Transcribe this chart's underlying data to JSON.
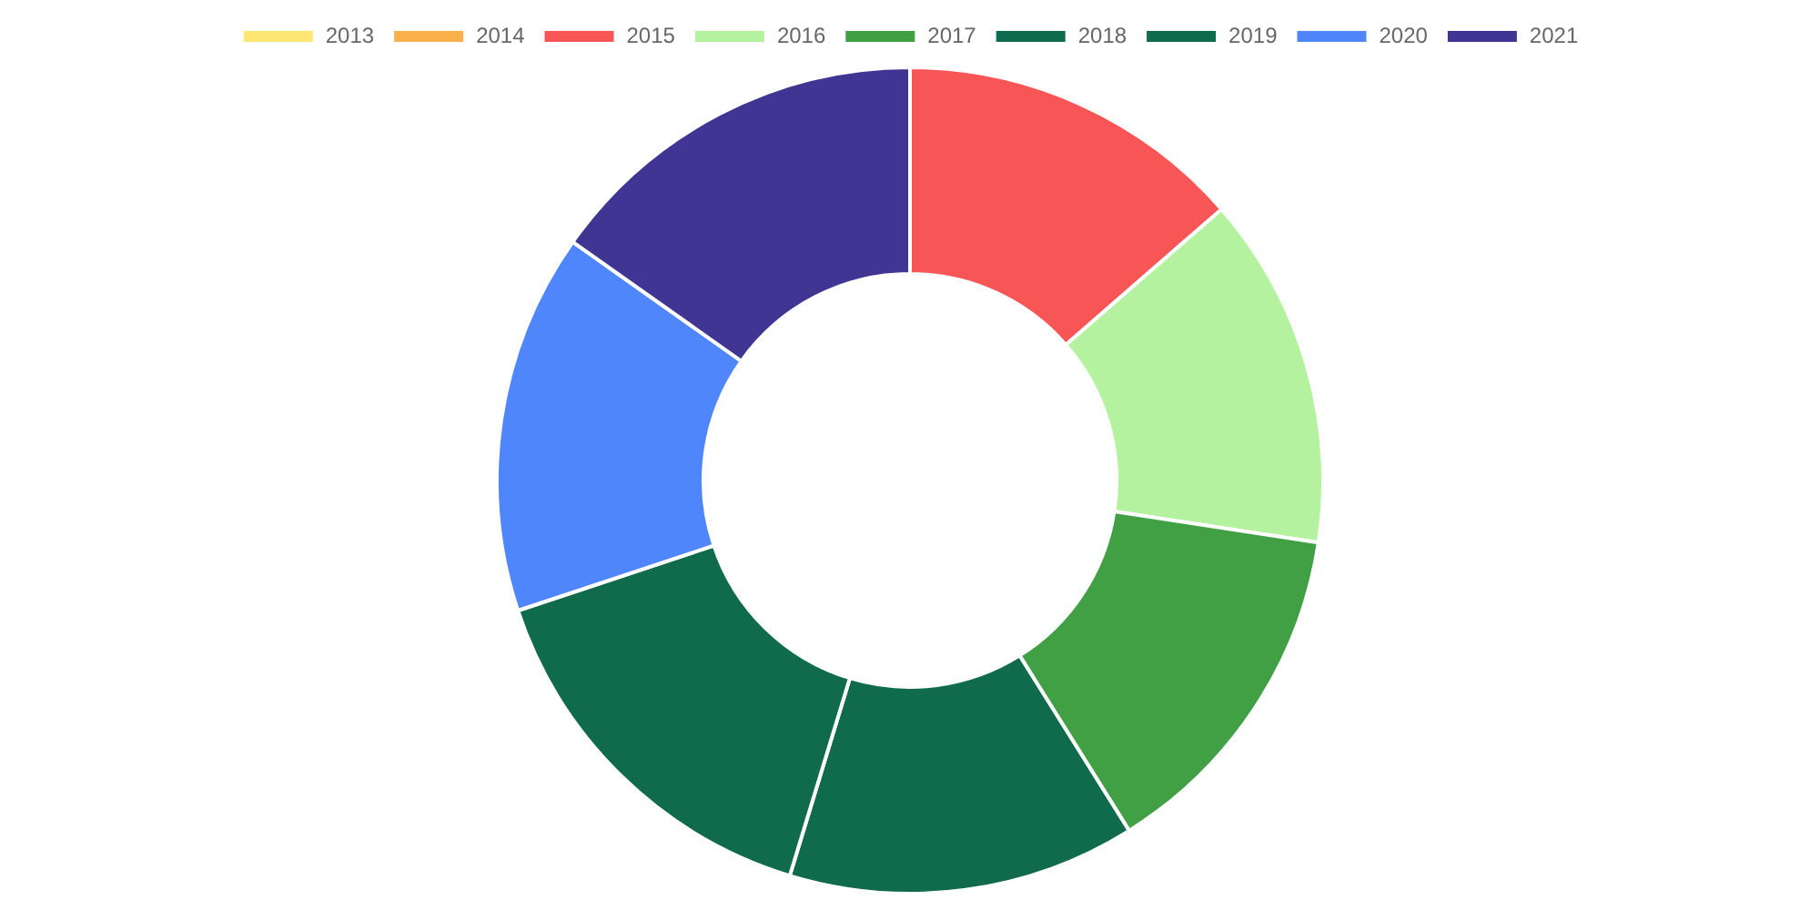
{
  "chart_data": {
    "type": "donut",
    "categories": [
      "2013",
      "2014",
      "2015",
      "2016",
      "2017",
      "2018",
      "2019",
      "2020",
      "2021"
    ],
    "values": [
      0,
      0,
      13.6,
      13.8,
      13.7,
      13.6,
      15.2,
      14.9,
      15.2
    ],
    "colors": [
      "#ffe774",
      "#fbb14b",
      "#f85656",
      "#b5f29f",
      "#41a043",
      "#0f6b4c",
      "#0f6b4c",
      "#5086fc",
      "#413594"
    ],
    "legend": "top"
  }
}
